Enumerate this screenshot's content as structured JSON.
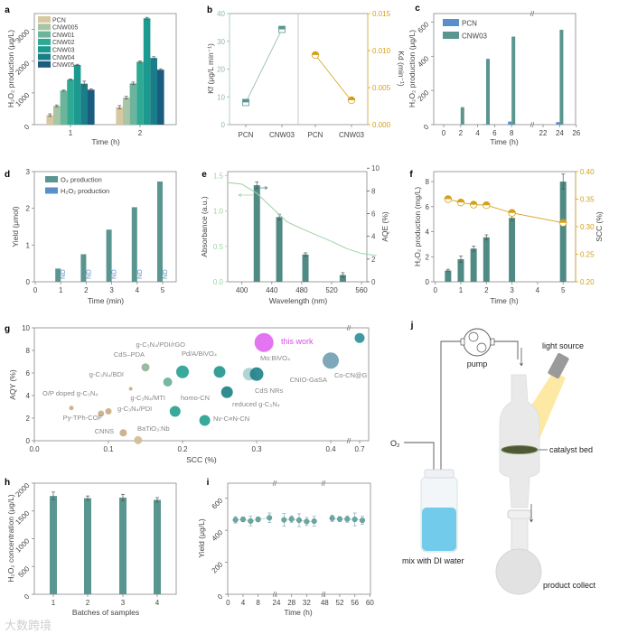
{
  "watermark": "大数跨境",
  "chart_data": [
    {
      "panel": "a",
      "type": "bar",
      "xlabel": "Time (h)",
      "ylabel": "H₂O₂ production (μg/L)",
      "categories": [
        "1",
        "2"
      ],
      "ylim": [
        0,
        3500
      ],
      "yticks": [
        "0",
        "1000",
        "2000",
        "3000"
      ],
      "series": [
        {
          "name": "PCN",
          "color": "#d8c8a2",
          "values": [
            300,
            550
          ],
          "err": [
            40,
            50
          ]
        },
        {
          "name": "CNW005",
          "color": "#a8c6a6",
          "values": [
            590,
            850
          ],
          "err": [
            30,
            40
          ]
        },
        {
          "name": "CNW01",
          "color": "#6cb59c",
          "values": [
            1070,
            1300
          ],
          "err": [
            20,
            40
          ]
        },
        {
          "name": "CNW02",
          "color": "#2ea994",
          "values": [
            1420,
            1980
          ],
          "err": [
            20,
            30
          ]
        },
        {
          "name": "CNW03",
          "color": "#1d9a90",
          "values": [
            1880,
            3350
          ],
          "err": [
            20,
            30
          ]
        },
        {
          "name": "CNW04",
          "color": "#1a7e88",
          "values": [
            1290,
            2100
          ],
          "err": [
            80,
            40
          ]
        },
        {
          "name": "CNW05",
          "color": "#1a5c80",
          "values": [
            1100,
            1730
          ],
          "err": [
            30,
            30
          ]
        }
      ]
    },
    {
      "panel": "b",
      "type": "line",
      "categories": [
        "PCN",
        "CNW03"
      ],
      "left": {
        "ylabel": "Kf (μg/L min⁻¹)",
        "ylim": [
          0,
          40
        ],
        "yticks": [
          "0",
          "10",
          "20",
          "30",
          "40"
        ],
        "values": [
          8,
          34.3
        ],
        "color": "#5a9690"
      },
      "right": {
        "ylabel": "Kd (min⁻¹)",
        "ylim": [
          0,
          0.015
        ],
        "yticks": [
          "0.000",
          "0.005",
          "0.010",
          "0.015"
        ],
        "values": [
          0.0094,
          0.0033
        ],
        "color": "#d4a017"
      }
    },
    {
      "panel": "c",
      "type": "bar",
      "xlabel": "Time (h)",
      "ylabel": "H₂O₂ production (μg/L)",
      "x": [
        2,
        5,
        8,
        24
      ],
      "axis_break": [
        9,
        21
      ],
      "xtick_values": [
        0,
        2,
        4,
        6,
        8,
        22,
        24,
        26
      ],
      "xticks": [
        "0",
        "2",
        "4",
        "6",
        "8",
        "22",
        "24",
        "26"
      ],
      "ylim": [
        0,
        650
      ],
      "yticks": [
        "0",
        "200",
        "400",
        "600"
      ],
      "series": [
        {
          "name": "PCN",
          "color": "#5b8fc9",
          "values": [
            0,
            3,
            18,
            15
          ]
        },
        {
          "name": "CNW03",
          "color": "#5a9690",
          "values": [
            102,
            385,
            515,
            555
          ]
        }
      ]
    },
    {
      "panel": "d",
      "type": "bar",
      "xlabel": "Time (min)",
      "ylabel": "Yield (μmol)",
      "x": [
        1,
        2,
        3,
        4,
        5
      ],
      "xticks": [
        "0",
        "1",
        "2",
        "3",
        "4",
        "5"
      ],
      "ylim": [
        0,
        3
      ],
      "yticks": [
        "0",
        "1",
        "2",
        "3"
      ],
      "nd_label": "ND",
      "series": [
        {
          "name": "O₂ production",
          "color": "#5a9690",
          "values": [
            0.36,
            0.75,
            1.42,
            2.03,
            2.73
          ]
        },
        {
          "name": "H₂O₂ production",
          "color": "#5b8fc9",
          "values": [
            "ND",
            "ND",
            "ND",
            "ND",
            "ND"
          ]
        }
      ]
    },
    {
      "panel": "e",
      "type": "bar",
      "xlabel": "Wavelength (nm)",
      "ylabel_left": "Absorbance (a.u.)",
      "ylabel_right": "AQE (%)",
      "xtick_values": [
        400,
        440,
        480,
        520,
        560
      ],
      "xticks": [
        "400",
        "440",
        "480",
        "520",
        "560"
      ],
      "left_ylim": [
        0,
        1.5
      ],
      "left_yticks": [
        "0.0",
        "0.5",
        "1.0",
        "1.5"
      ],
      "right_ylim": [
        0,
        10
      ],
      "right_yticks": [
        "0",
        "2",
        "4",
        "6",
        "8",
        "10"
      ],
      "aqe": {
        "x": [
          420,
          450,
          485,
          535
        ],
        "values": [
          8.5,
          5.7,
          2.4,
          0.6
        ],
        "err": [
          0.3,
          0.25,
          0.15,
          0.2
        ],
        "color": "#4f8a84"
      },
      "absorbance": {
        "x": [
          380,
          400,
          420,
          440,
          460,
          480,
          500,
          520,
          540,
          560,
          580
        ],
        "values": [
          1.4,
          1.38,
          1.25,
          1.05,
          0.85,
          0.75,
          0.66,
          0.57,
          0.47,
          0.4,
          0.37
        ],
        "color": "#9fd3a6"
      }
    },
    {
      "panel": "f",
      "type": "bar",
      "xlabel": "Time (h)",
      "ylabel_left": "H₂O₂ production (mg/L)",
      "ylabel_right": "SCC (%)",
      "xticks": [
        "0",
        "1",
        "2",
        "3",
        "4",
        "5"
      ],
      "left_ylim": [
        0,
        8.8
      ],
      "left_yticks": [
        "0",
        "2",
        "4",
        "6",
        "8"
      ],
      "right_ylim": [
        0.2,
        0.4
      ],
      "right_yticks": [
        "0.20",
        "0.25",
        "0.30",
        "0.35",
        "0.40"
      ],
      "x": [
        0.5,
        1,
        1.5,
        2,
        3,
        5
      ],
      "h2o2": {
        "values": [
          0.9,
          1.8,
          2.65,
          3.55,
          5.1,
          8.0
        ],
        "err": [
          0.1,
          0.25,
          0.2,
          0.2,
          0.2,
          0.6
        ],
        "color": "#4f8a84"
      },
      "scc": {
        "values": [
          0.35,
          0.344,
          0.34,
          0.339,
          0.325,
          0.307
        ],
        "color": "#d4a017"
      }
    },
    {
      "panel": "g",
      "type": "scatter",
      "xlabel": "SCC (%)",
      "ylabel": "AQY (%)",
      "xtick_values": [
        0,
        0.1,
        0.2,
        0.3,
        0.4,
        0.7
      ],
      "xticks": [
        "0.0",
        "0.1",
        "0.2",
        "0.3",
        "0.4",
        "0.7"
      ],
      "axis_break": [
        0.42,
        0.68
      ],
      "ylim": [
        0,
        10
      ],
      "yticks": [
        "0",
        "2",
        "4",
        "6",
        "8",
        "10"
      ],
      "points": [
        {
          "label": "O/P doped g-C₃N₄",
          "x": 0.05,
          "y": 2.9,
          "color": "#c9ab82"
        },
        {
          "label": "Py-TPh-COF",
          "x": 0.09,
          "y": 2.4,
          "color": "#c9ab82"
        },
        {
          "label": "g-C₃N₄/PDI",
          "x": 0.1,
          "y": 2.6,
          "color": "#c9ab82"
        },
        {
          "label": "g-C₃N₄/BDI",
          "x": 0.13,
          "y": 4.6,
          "color": "#c9ab82"
        },
        {
          "label": "CNNS",
          "x": 0.12,
          "y": 0.7,
          "color": "#c9ab82"
        },
        {
          "label": "BaTiO₃:Nb",
          "x": 0.14,
          "y": 0.05,
          "color": "#d2bb94"
        },
        {
          "label": "CdS–PDA",
          "x": 0.15,
          "y": 6.5,
          "color": "#8fb39a"
        },
        {
          "label": "g-C₃N₄/MTI",
          "x": 0.18,
          "y": 5.2,
          "color": "#6aae99"
        },
        {
          "label": "homo-CN",
          "x": 0.19,
          "y": 2.6,
          "color": "#26a08f"
        },
        {
          "label": "g-C₃N₄/PDI/rGO",
          "x": 0.2,
          "y": 6.1,
          "color": "#22a08f"
        },
        {
          "label": "Pd/A/BiVO₄",
          "x": 0.25,
          "y": 6.1,
          "color": "#1f968c"
        },
        {
          "label": "Nv-C≡N-CN",
          "x": 0.23,
          "y": 1.8,
          "color": "#22a08f"
        },
        {
          "label": "reduced g-C₃N₄",
          "x": 0.26,
          "y": 4.3,
          "color": "#187f84"
        },
        {
          "label": "CdS NRs",
          "x": 0.29,
          "y": 5.9,
          "color": "#a8cfcf"
        },
        {
          "label": "Mo:BiVO₄",
          "x": 0.3,
          "y": 5.9,
          "color": "#1e8088"
        },
        {
          "label": "this work",
          "x": 0.31,
          "y": 8.7,
          "color": "#e066ee"
        },
        {
          "label": "CNIO-GaSA",
          "x": 0.4,
          "y": 7.1,
          "color": "#6e9fb3"
        },
        {
          "label": "Co-CN@G",
          "x": 0.7,
          "y": 9.1,
          "color": "#2a8f9a"
        }
      ]
    },
    {
      "panel": "h",
      "type": "bar",
      "xlabel": "Batches of samples",
      "ylabel": "H₂O₂ concentration (μg/L)",
      "categories": [
        "1",
        "2",
        "3",
        "4"
      ],
      "values": [
        1770,
        1730,
        1740,
        1700
      ],
      "err": [
        70,
        40,
        60,
        40
      ],
      "ylim": [
        0,
        2000
      ],
      "yticks": [
        "0",
        "500",
        "1000",
        "1500",
        "2000"
      ],
      "color": "#5a9690"
    },
    {
      "panel": "i",
      "type": "scatter",
      "xlabel": "Time (h)",
      "ylabel": "Yield (μg/L)",
      "xtick_values": [
        0,
        4,
        8,
        24,
        28,
        32,
        48,
        52,
        56,
        60
      ],
      "xticks": [
        "0",
        "4",
        "8",
        "24",
        "28",
        "32",
        "48",
        "52",
        "56",
        "60"
      ],
      "axis_breaks": [
        [
          12,
          24
        ],
        [
          36,
          48
        ]
      ],
      "ylim": [
        0,
        700
      ],
      "yticks": [
        "0",
        "200",
        "400",
        "600"
      ],
      "x": [
        2,
        4,
        6,
        8,
        11,
        26,
        28,
        30,
        32,
        34,
        50,
        52,
        54,
        56,
        58
      ],
      "values": [
        465,
        468,
        458,
        468,
        478,
        465,
        470,
        463,
        455,
        457,
        475,
        470,
        470,
        468,
        462
      ],
      "err": [
        20,
        15,
        30,
        15,
        30,
        40,
        20,
        40,
        25,
        30,
        20,
        15,
        20,
        40,
        25
      ],
      "color": "#6aa8a4"
    }
  ],
  "diagram_j": {
    "panel": "j",
    "pump": "pump",
    "light_source": "light source",
    "o2": "O₂",
    "catalyst_bed": "catalyst bed",
    "mix": "mix with DI water",
    "product": "product collect"
  }
}
